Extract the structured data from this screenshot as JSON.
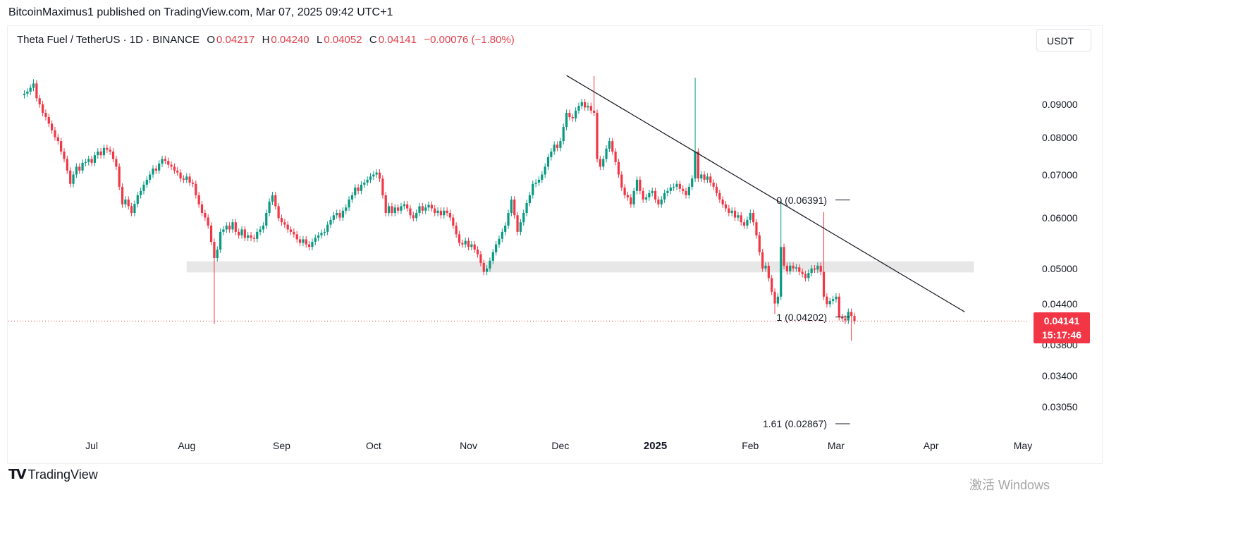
{
  "publisher_line": "BitcoinMaximus1 published on TradingView.com, Mar 07, 2025 09:42 UTC+1",
  "legend": {
    "symbol": "Theta Fuel / TetherUS · 1D · BINANCE",
    "o_label": "O",
    "o": "0.04217",
    "h_label": "H",
    "h": "0.04240",
    "l_label": "L",
    "l": "0.04052",
    "c_label": "C",
    "c": "0.04141",
    "change": "−0.00076 (−1.80%)"
  },
  "currency_button": "USDT",
  "last_price_badge": {
    "price": "0.04141",
    "countdown": "15:17:46"
  },
  "branding": {
    "logo_text": "TradingView"
  },
  "watermark": "激活 Windows",
  "colors": {
    "up": "#089981",
    "down": "#f23645",
    "trendline": "#131722",
    "zone": "#e3e3e3"
  },
  "chart_data": {
    "type": "candlestick",
    "scale": "log",
    "interval": "1D",
    "last_date": "2025-03-07",
    "ylim": [
      0.0275,
      0.105
    ],
    "y_ticks": [
      "0.09000",
      "0.08000",
      "0.07000",
      "0.06000",
      "0.05000",
      "0.04400",
      "0.03800",
      "0.03400",
      "0.03050"
    ],
    "x_ticks": [
      {
        "label": "Jul",
        "date": "2024-07-01"
      },
      {
        "label": "Aug",
        "date": "2024-08-01"
      },
      {
        "label": "Sep",
        "date": "2024-09-01"
      },
      {
        "label": "Oct",
        "date": "2024-10-01"
      },
      {
        "label": "Nov",
        "date": "2024-11-01"
      },
      {
        "label": "Dec",
        "date": "2024-12-01"
      },
      {
        "label": "2025",
        "date": "2025-01-01",
        "bold": true
      },
      {
        "label": "Feb",
        "date": "2025-02-01"
      },
      {
        "label": "Mar",
        "date": "2025-03-01"
      },
      {
        "label": "Apr",
        "date": "2025-04-01"
      },
      {
        "label": "May",
        "date": "2025-05-01"
      }
    ],
    "closes": [
      0.0935,
      0.0942,
      0.0955,
      0.097,
      0.092,
      0.09,
      0.0873,
      0.086,
      0.084,
      0.082,
      0.08,
      0.0789,
      0.076,
      0.074,
      0.071,
      0.0677,
      0.07,
      0.072,
      0.071,
      0.073,
      0.0732,
      0.074,
      0.073,
      0.075,
      0.076,
      0.075,
      0.077,
      0.0765,
      0.076,
      0.074,
      0.072,
      0.067,
      0.0629,
      0.064,
      0.0625,
      0.061,
      0.063,
      0.065,
      0.066,
      0.0675,
      0.0687,
      0.07,
      0.0715,
      0.071,
      0.0728,
      0.074,
      0.0735,
      0.0725,
      0.072,
      0.071,
      0.0705,
      0.069,
      0.0687,
      0.0695,
      0.068,
      0.0677,
      0.065,
      0.0629,
      0.061,
      0.06,
      0.0583,
      0.055,
      0.0519,
      0.0535,
      0.057,
      0.0575,
      0.0583,
      0.0575,
      0.059,
      0.057,
      0.0563,
      0.0575,
      0.0558,
      0.0563,
      0.0558,
      0.0556,
      0.057,
      0.0575,
      0.0583,
      0.061,
      0.0635,
      0.065,
      0.0625,
      0.0599,
      0.059,
      0.0585,
      0.0575,
      0.057,
      0.0565,
      0.0555,
      0.0548,
      0.0555,
      0.0545,
      0.054,
      0.055,
      0.0558,
      0.0563,
      0.0568,
      0.057,
      0.0585,
      0.0595,
      0.0605,
      0.061,
      0.06,
      0.0615,
      0.0622,
      0.064,
      0.065,
      0.0668,
      0.066,
      0.0675,
      0.068,
      0.0687,
      0.0695,
      0.07,
      0.0705,
      0.069,
      0.065,
      0.061,
      0.0625,
      0.061,
      0.0622,
      0.0615,
      0.0625,
      0.0629,
      0.062,
      0.0605,
      0.0599,
      0.061,
      0.0625,
      0.0615,
      0.0622,
      0.0628,
      0.062,
      0.061,
      0.0615,
      0.0605,
      0.0615,
      0.061,
      0.06,
      0.0583,
      0.0565,
      0.0548,
      0.0545,
      0.0552,
      0.054,
      0.0545,
      0.0535,
      0.0526,
      0.051,
      0.0494,
      0.05,
      0.0514,
      0.053,
      0.0545,
      0.0556,
      0.057,
      0.0583,
      0.061,
      0.064,
      0.0605,
      0.057,
      0.059,
      0.061,
      0.0632,
      0.065,
      0.0677,
      0.068,
      0.0687,
      0.07,
      0.072,
      0.0745,
      0.076,
      0.0779,
      0.077,
      0.0789,
      0.083,
      0.0873,
      0.086,
      0.0856,
      0.088,
      0.0895,
      0.0907,
      0.089,
      0.0895,
      0.088,
      0.0873,
      0.074,
      0.072,
      0.074,
      0.0768,
      0.0789,
      0.076,
      0.0732,
      0.07,
      0.0668,
      0.065,
      0.0645,
      0.0629,
      0.066,
      0.0687,
      0.066,
      0.064,
      0.0645,
      0.0655,
      0.066,
      0.064,
      0.0629,
      0.064,
      0.0655,
      0.066,
      0.0668,
      0.067,
      0.0677,
      0.0665,
      0.066,
      0.065,
      0.067,
      0.069,
      0.076,
      0.069,
      0.07,
      0.0687,
      0.0695,
      0.068,
      0.067,
      0.0655,
      0.064,
      0.0629,
      0.062,
      0.061,
      0.0615,
      0.06,
      0.0605,
      0.059,
      0.0583,
      0.0595,
      0.061,
      0.059,
      0.0563,
      0.053,
      0.05,
      0.0505,
      0.0483,
      0.046,
      0.0441,
      0.0452,
      0.054,
      0.0505,
      0.0495,
      0.0505,
      0.05,
      0.0502,
      0.0494,
      0.049,
      0.0483,
      0.0492,
      0.05,
      0.0498,
      0.0505,
      0.0494,
      0.0452,
      0.044,
      0.0445,
      0.0448,
      0.0452,
      0.042,
      0.0418,
      0.0415,
      0.0428,
      0.04217,
      0.04141
    ],
    "notable_wicks": [
      {
        "index": 3,
        "high": 0.0985
      },
      {
        "index": 62,
        "low": 0.041
      },
      {
        "index": 186,
        "high": 0.0996
      },
      {
        "index": 219,
        "high": 0.099
      },
      {
        "index": 245,
        "low": 0.0425
      },
      {
        "index": 247,
        "high": 0.0635
      },
      {
        "index": 261,
        "high": 0.0612
      },
      {
        "index": 270,
        "low": 0.0386
      },
      {
        "index": 272,
        "high": 0.0424,
        "low": 0.04052
      }
    ],
    "last_price": 0.04141,
    "support_zone": {
      "from_date": "2024-08-01",
      "to_date": "2025-04-15",
      "low": 0.0493,
      "high": 0.0513
    },
    "trendline": {
      "start": {
        "date": "2024-12-03",
        "price": 0.0998
      },
      "end": {
        "date": "2025-04-12",
        "price": 0.0428
      }
    },
    "fib_levels": [
      {
        "label": "0 (0.06391)",
        "price": 0.06391
      },
      {
        "label": "1 (0.04202)",
        "price": 0.04202
      },
      {
        "label": "1.61 (0.02867)",
        "price": 0.02867
      }
    ],
    "fib_range": {
      "from_date": "2025-02-09",
      "to_date": "2025-03-06"
    }
  }
}
